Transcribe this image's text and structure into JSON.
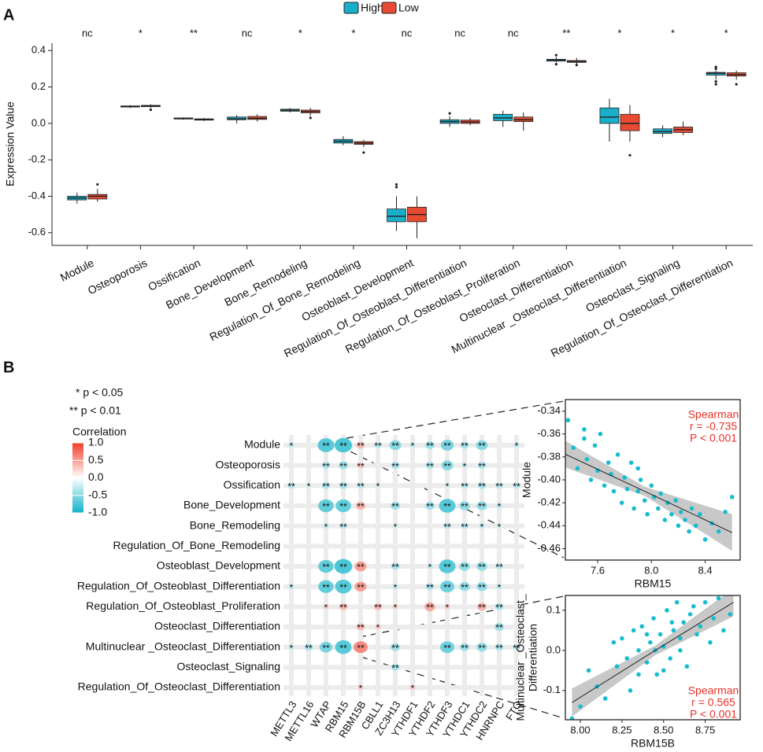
{
  "chart_data": [
    {
      "type": "box",
      "panel": "A",
      "ylabel": "Expression Value",
      "categories": [
        "Module",
        "Osteoporosis",
        "Ossification",
        "Bone_Development",
        "Bone_Remodeling",
        "Regulation_Of_Bone_Remodeling",
        "Osteoblast_Development",
        "Regulation_Of_Osteoblast_Differentiation",
        "Regulation_Of_Osteoblast_Proliferation",
        "Osteoclast_Differentiation",
        "Multinuclear _Osteoclast_Differentiation",
        "Osteoclast_Signaling",
        "Regulation_Of_Osteoclast_Differentiation"
      ],
      "significance": [
        "nc",
        "*",
        "**",
        "nc",
        "*",
        "*",
        "nc",
        "nc",
        "nc",
        "**",
        "*",
        "*",
        "*"
      ],
      "ylim": [
        -0.67,
        0.44
      ],
      "yticks": [
        -0.6,
        -0.4,
        -0.2,
        {
          "value": 0,
          "label": "0.0"
        },
        0.2,
        0.4
      ],
      "series": [
        {
          "name": "High",
          "color": "#1aafc9",
          "values": [
            [
              -0.44,
              -0.42,
              -0.41,
              -0.4,
              -0.38
            ],
            [
              0.085,
              0.09,
              0.092,
              0.096,
              0.1
            ],
            [
              0.02,
              0.024,
              0.027,
              0.03,
              0.033
            ],
            [
              0.0,
              0.02,
              0.025,
              0.035,
              0.045
            ],
            [
              0.06,
              0.067,
              0.072,
              0.078,
              0.085
            ],
            [
              -0.12,
              -0.108,
              -0.098,
              -0.088,
              -0.07
            ],
            [
              -0.59,
              -0.54,
              -0.51,
              -0.47,
              -0.4
            ],
            [
              -0.02,
              0.0,
              0.01,
              0.02,
              0.04
            ],
            [
              -0.02,
              0.015,
              0.03,
              0.05,
              0.07
            ],
            [
              0.335,
              0.342,
              0.348,
              0.352,
              0.365
            ],
            [
              -0.1,
              0.0,
              0.035,
              0.085,
              0.135
            ],
            [
              -0.075,
              -0.055,
              -0.045,
              -0.03,
              -0.01
            ],
            [
              0.24,
              0.265,
              0.275,
              0.28,
              0.29
            ]
          ],
          "outliers": [
            [],
            [],
            [],
            [],
            [],
            [],
            [
              -0.35,
              -0.335
            ],
            [
              0.055
            ],
            [],
            [
              0.325,
              0.375
            ],
            [],
            [],
            [
              0.3,
              0.31,
              0.23,
              0.215
            ]
          ]
        },
        {
          "name": "Low",
          "color": "#e84a32",
          "values": [
            [
              -0.43,
              -0.415,
              -0.4,
              -0.39,
              -0.36
            ],
            [
              0.085,
              0.092,
              0.095,
              0.099,
              0.105
            ],
            [
              0.013,
              0.018,
              0.021,
              0.025,
              0.03
            ],
            [
              0.01,
              0.022,
              0.028,
              0.038,
              0.05
            ],
            [
              0.04,
              0.058,
              0.065,
              0.073,
              0.085
            ],
            [
              -0.13,
              -0.115,
              -0.108,
              -0.1,
              -0.09
            ],
            [
              -0.63,
              -0.54,
              -0.5,
              -0.46,
              -0.4
            ],
            [
              -0.01,
              0.0,
              0.008,
              0.018,
              0.03
            ],
            [
              -0.04,
              0.01,
              0.02,
              0.035,
              0.06
            ],
            [
              0.325,
              0.335,
              0.34,
              0.345,
              0.36
            ],
            [
              -0.1,
              -0.04,
              0.0,
              0.05,
              0.1
            ],
            [
              -0.065,
              -0.05,
              -0.035,
              -0.02,
              0.01
            ],
            [
              0.24,
              0.26,
              0.268,
              0.278,
              0.29
            ]
          ],
          "outliers": [
            [
              -0.335
            ],
            [
              0.075
            ],
            [],
            [],
            [
              0.03
            ],
            [
              -0.16
            ],
            [],
            [],
            [],
            [
              0.32
            ],
            [
              -0.175
            ],
            [],
            [
              0.215
            ]
          ]
        }
      ]
    },
    {
      "type": "heatmap",
      "panel": "B",
      "legend_notes": [
        "* p < 0.05",
        "** p < 0.01"
      ],
      "rows": [
        "Module",
        "Osteoporosis",
        "Ossification",
        "Bone_Development",
        "Bone_Remodeling",
        "Regulation_Of_Bone_Remodeling",
        "Osteoblast_Development",
        "Regulation_Of_Osteoblast_Differentiation",
        "Regulation_Of_Osteoblast_Proliferation",
        "Osteoclast_Differentiation",
        "Multinuclear _Osteoclast_Differentiation",
        "Osteoclast_Signaling",
        "Regulation_Of_Osteoclast_Differentiation"
      ],
      "columns": [
        "METTL3",
        "METTL16",
        "WTAP",
        "RBM15",
        "RBM15B",
        "CBLL1",
        "ZC3H13",
        "YTHDF1",
        "YTHDF2",
        "YTHDF3",
        "YTHDC1",
        "YTHDC2",
        "HNRNPC",
        "FTO"
      ],
      "values": [
        [
          -0.25,
          -0.05,
          -0.7,
          -0.74,
          0.35,
          -0.3,
          -0.5,
          -0.25,
          -0.4,
          -0.55,
          -0.35,
          -0.5,
          -0.05,
          -0.25
        ],
        [
          0,
          0,
          -0.35,
          -0.4,
          0.3,
          0,
          -0.35,
          0,
          -0.35,
          -0.5,
          -0.25,
          -0.35,
          0,
          0
        ],
        [
          -0.3,
          -0.2,
          -0.35,
          -0.35,
          -0.3,
          -0.2,
          0,
          0,
          0,
          -0.2,
          -0.3,
          -0.35,
          -0.3,
          -0.3
        ],
        [
          0,
          0,
          -0.65,
          -0.65,
          0.4,
          0,
          -0.4,
          0,
          -0.4,
          -0.7,
          -0.45,
          -0.45,
          -0.25,
          0
        ],
        [
          0,
          0,
          -0.25,
          -0.3,
          0,
          0,
          -0.2,
          0,
          0,
          -0.3,
          -0.3,
          -0.25,
          -0.2,
          -0.15
        ],
        [
          0.05,
          0,
          -0.05,
          -0.05,
          0.05,
          0,
          0,
          0,
          0.05,
          0,
          0,
          -0.05,
          0,
          0
        ],
        [
          0,
          0,
          -0.65,
          -0.75,
          0.5,
          0,
          -0.35,
          0,
          -0.25,
          -0.7,
          -0.45,
          -0.45,
          -0.3,
          0
        ],
        [
          -0.25,
          0,
          -0.65,
          -0.7,
          0.5,
          0,
          -0.25,
          0,
          -0.35,
          -0.6,
          -0.45,
          -0.45,
          -0.25,
          0
        ],
        [
          0,
          0,
          0.25,
          0.35,
          0,
          0.35,
          0.25,
          0,
          0.45,
          0.25,
          0,
          0.4,
          -0.35,
          0
        ],
        [
          0,
          0,
          0,
          0,
          0.35,
          0.25,
          0,
          0,
          0,
          0,
          0,
          0,
          -0.4,
          0
        ],
        [
          -0.25,
          -0.35,
          -0.55,
          -0.7,
          0.6,
          0,
          -0.4,
          0,
          0,
          -0.6,
          -0.4,
          -0.45,
          -0.35,
          -0.3
        ],
        [
          0,
          0,
          0,
          0,
          0,
          0,
          -0.35,
          0,
          0,
          0,
          0,
          0,
          0,
          0
        ],
        [
          0,
          0,
          0,
          0,
          0.25,
          0,
          0,
          0.25,
          0,
          0,
          0,
          0,
          0,
          0
        ]
      ],
      "significance": [
        [
          "*",
          null,
          "**",
          "**",
          "**",
          "**",
          "**",
          "*",
          "**",
          "**",
          "**",
          "**",
          null,
          "*"
        ],
        [
          null,
          null,
          "**",
          "**",
          "**",
          null,
          "**",
          null,
          "**",
          "**",
          "*",
          "**",
          null,
          null
        ],
        [
          "**",
          "*",
          "**",
          "**",
          "**",
          "*",
          null,
          null,
          null,
          "*",
          "**",
          "**",
          "**",
          "**"
        ],
        [
          null,
          null,
          "**",
          "**",
          "**",
          null,
          "**",
          null,
          "**",
          "**",
          "**",
          "**",
          "*",
          null
        ],
        [
          null,
          null,
          "*",
          "**",
          null,
          null,
          "*",
          null,
          null,
          "**",
          "**",
          "*",
          "*",
          null
        ],
        [
          null,
          null,
          null,
          null,
          null,
          null,
          null,
          null,
          null,
          null,
          null,
          null,
          null,
          null
        ],
        [
          null,
          null,
          "**",
          "**",
          "**",
          null,
          "**",
          null,
          "*",
          "**",
          "**",
          "**",
          "**",
          null
        ],
        [
          "*",
          null,
          "**",
          "**",
          "**",
          null,
          "*",
          null,
          "**",
          "**",
          "**",
          "**",
          "*",
          null
        ],
        [
          null,
          null,
          "*",
          "**",
          null,
          "**",
          "*",
          null,
          "**",
          "*",
          null,
          "**",
          "**",
          null
        ],
        [
          null,
          null,
          null,
          null,
          "**",
          "*",
          null,
          null,
          null,
          null,
          null,
          null,
          "**",
          null
        ],
        [
          "*",
          "**",
          "**",
          "**",
          "**",
          null,
          "**",
          null,
          null,
          "**",
          "**",
          "**",
          "**",
          "**"
        ],
        [
          null,
          null,
          null,
          null,
          null,
          null,
          "**",
          null,
          null,
          null,
          null,
          null,
          null,
          null
        ],
        [
          null,
          null,
          null,
          null,
          "*",
          null,
          null,
          "*",
          null,
          null,
          null,
          null,
          null,
          null
        ]
      ],
      "colorbar": {
        "title": "Correlation",
        "clim": [
          -1,
          1
        ],
        "colors": [
          "#0fb3c8",
          "#ffffff",
          "#ef3e2a"
        ],
        "ticks": [
          {
            "value": 1,
            "label": "1.0"
          },
          0.5,
          {
            "value": 0,
            "label": "0.0"
          },
          -0.5,
          {
            "value": -1,
            "label": "-1.0"
          }
        ]
      }
    },
    {
      "type": "scatter",
      "color": "#18bccf",
      "xlabel": "RBM15",
      "ylabel": [
        "Module"
      ],
      "annotation": [
        "Spearman",
        "r = -0.735",
        "P < 0.001"
      ],
      "annotation_color": "#e8322a",
      "annotation_corner": "top-right",
      "xlim": [
        7.36,
        8.66
      ],
      "ylim": [
        -0.47,
        -0.33
      ],
      "xticks": [
        7.6,
        {
          "value": 8,
          "label": "8.0"
        },
        8.4
      ],
      "yticks": [
        -0.46,
        -0.44,
        -0.42,
        {
          "value": -0.4,
          "label": "-0.40"
        },
        -0.38,
        -0.36,
        -0.34
      ],
      "x": [
        7.33,
        7.38,
        7.42,
        7.45,
        7.5,
        7.52,
        7.55,
        7.58,
        7.6,
        7.62,
        7.65,
        7.68,
        7.7,
        7.72,
        7.75,
        7.78,
        7.8,
        7.82,
        7.85,
        7.87,
        7.9,
        7.92,
        7.95,
        7.97,
        8.0,
        8.02,
        8.05,
        8.07,
        8.1,
        8.12,
        8.15,
        8.18,
        8.2,
        8.22,
        8.25,
        8.28,
        8.3,
        8.33,
        8.36,
        8.4,
        8.45,
        8.5,
        8.55,
        8.6,
        7.5,
        7.9
      ],
      "y": [
        -0.378,
        -0.348,
        -0.372,
        -0.39,
        -0.356,
        -0.382,
        -0.4,
        -0.37,
        -0.392,
        -0.36,
        -0.405,
        -0.385,
        -0.395,
        -0.41,
        -0.378,
        -0.42,
        -0.398,
        -0.408,
        -0.385,
        -0.425,
        -0.41,
        -0.4,
        -0.418,
        -0.43,
        -0.405,
        -0.415,
        -0.425,
        -0.412,
        -0.435,
        -0.42,
        -0.43,
        -0.418,
        -0.44,
        -0.428,
        -0.435,
        -0.445,
        -0.425,
        -0.44,
        -0.43,
        -0.452,
        -0.438,
        -0.445,
        -0.428,
        -0.415,
        -0.364,
        -0.39
      ],
      "fit": {
        "x": [
          7.33,
          7.95,
          8.6
        ],
        "y": [
          -0.376,
          -0.41,
          -0.446
        ],
        "lower": [
          -0.388,
          -0.414,
          -0.462
        ],
        "upper": [
          -0.364,
          -0.406,
          -0.43
        ]
      }
    },
    {
      "type": "scatter",
      "color": "#18bccf",
      "xlabel": "RBM15B",
      "ylabel": [
        "Multinuclear _Osteoclast_",
        "Differentiation"
      ],
      "annotation": [
        "Spearman",
        "r = 0.565",
        "P < 0.001"
      ],
      "annotation_color": "#e8322a",
      "annotation_corner": "bottom-right",
      "xlim": [
        7.91,
        8.96
      ],
      "ylim": [
        -0.173,
        0.137
      ],
      "xticks": [
        {
          "value": 8,
          "label": "8.00"
        },
        8.25,
        {
          "value": 8.5,
          "label": "8.50"
        },
        8.75
      ],
      "yticks": [
        -0.1,
        {
          "value": 0,
          "label": "0.0"
        },
        0.1
      ],
      "x": [
        7.95,
        8.0,
        8.05,
        8.1,
        8.15,
        8.2,
        8.22,
        8.25,
        8.28,
        8.3,
        8.32,
        8.35,
        8.37,
        8.4,
        8.42,
        8.44,
        8.46,
        8.48,
        8.5,
        8.52,
        8.54,
        8.56,
        8.58,
        8.6,
        8.62,
        8.64,
        8.66,
        8.68,
        8.7,
        8.72,
        8.75,
        8.78,
        8.8,
        8.83,
        8.86,
        8.9,
        8.45,
        8.5,
        8.55,
        8.35,
        8.6,
        8.4
      ],
      "y": [
        -0.17,
        -0.14,
        -0.05,
        -0.09,
        -0.12,
        0.02,
        -0.04,
        0.03,
        -0.02,
        -0.1,
        0.05,
        0.0,
        0.06,
        -0.03,
        0.02,
        0.08,
        -0.06,
        0.04,
        0.01,
        0.1,
        -0.02,
        0.05,
        0.12,
        0.03,
        0.07,
        -0.04,
        0.09,
        0.11,
        0.04,
        0.06,
        0.12,
        0.02,
        0.08,
        0.13,
        0.05,
        0.09,
        0.0,
        -0.05,
        0.07,
        -0.06,
        0.0,
        0.04
      ],
      "fit": {
        "x": [
          7.95,
          8.45,
          8.92
        ],
        "y": [
          -0.13,
          0.0,
          0.12
        ],
        "lower": [
          -0.165,
          -0.012,
          0.085
        ],
        "upper": [
          -0.095,
          0.012,
          0.155
        ]
      }
    }
  ]
}
